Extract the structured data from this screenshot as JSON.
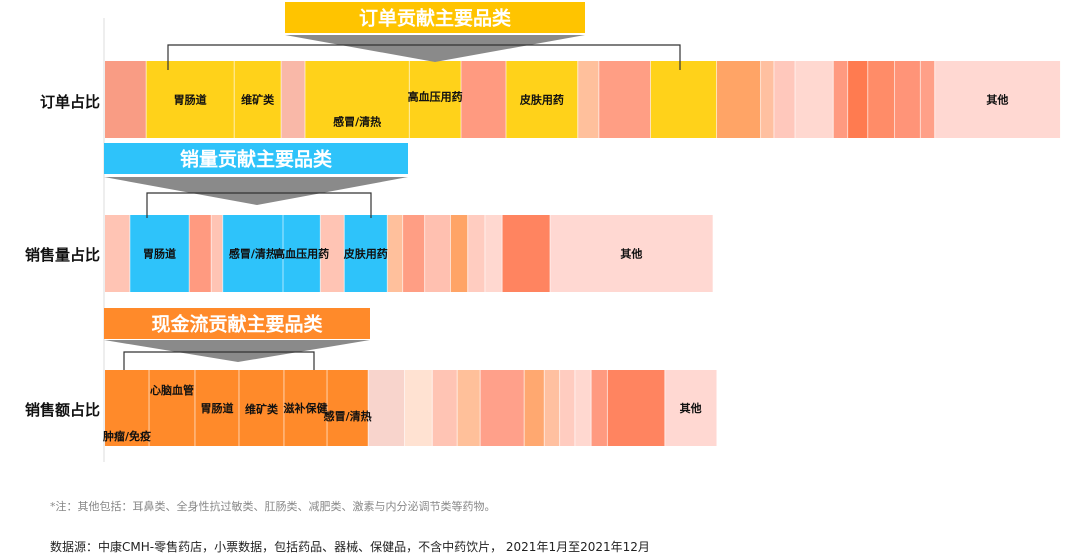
{
  "chart_data": {
    "type": "bar",
    "subtype": "stacked-horizontal-share",
    "rows": [
      {
        "label": "订单占比",
        "callout": {
          "title": "订单贡献主要品类",
          "color": "#FFC400"
        },
        "segments": [
          {
            "label": "",
            "share": 4.3,
            "color": "#F99C84"
          },
          {
            "label": "胃肠道",
            "share": 9.2,
            "color": "#FFD21A"
          },
          {
            "label": "维矿类",
            "share": 4.9,
            "color": "#FFD21A"
          },
          {
            "label": "",
            "share": 2.5,
            "color": "#F9B8A8"
          },
          {
            "label": "感冒/清热",
            "share": 10.9,
            "color": "#FFD21A"
          },
          {
            "label": "高血压用药",
            "share": 5.4,
            "color": "#FFD21A"
          },
          {
            "label": "",
            "share": 4.7,
            "color": "#FF9A80"
          },
          {
            "label": "皮肤用药",
            "share": 7.5,
            "color": "#FFD21A"
          },
          {
            "label": "",
            "share": 2.2,
            "color": "#FFC09C"
          },
          {
            "label": "",
            "share": 5.4,
            "color": "#FF9E84"
          },
          {
            "label": "",
            "share": 6.9,
            "color": "#FFD21A"
          },
          {
            "label": "",
            "share": 4.6,
            "color": "#FFA466"
          },
          {
            "label": "",
            "share": 1.4,
            "color": "#FFC0A0"
          },
          {
            "label": "",
            "share": 2.2,
            "color": "#FFC8BC"
          },
          {
            "label": "",
            "share": 4.0,
            "color": "#FFD8D0"
          },
          {
            "label": "",
            "share": 1.5,
            "color": "#FF9A80"
          },
          {
            "label": "",
            "share": 2.1,
            "color": "#FF7B50"
          },
          {
            "label": "",
            "share": 2.8,
            "color": "#FF8C68"
          },
          {
            "label": "",
            "share": 2.7,
            "color": "#FF9478"
          },
          {
            "label": "",
            "share": 1.5,
            "color": "#FFA088"
          },
          {
            "label": "其他",
            "share": 13.1,
            "color": "#FFD8D2"
          }
        ]
      },
      {
        "label": "销售量占比",
        "callout": {
          "title": "销量贡献主要品类",
          "color": "#2EC3FA"
        },
        "segments": [
          {
            "label": "",
            "share": 2.6,
            "color": "#FFC4B4"
          },
          {
            "label": "胃肠道",
            "share": 6.2,
            "color": "#2EC3FA"
          },
          {
            "label": "",
            "share": 2.3,
            "color": "#FF9A80"
          },
          {
            "label": "",
            "share": 1.2,
            "color": "#FFC4B4"
          },
          {
            "label": "感冒/清热",
            "share": 6.3,
            "color": "#2EC3FA"
          },
          {
            "label": "高血压用药",
            "share": 3.9,
            "color": "#2EC3FA"
          },
          {
            "label": "",
            "share": 2.5,
            "color": "#FFC4B4"
          },
          {
            "label": "皮肤用药",
            "share": 4.5,
            "color": "#2EC3FA"
          },
          {
            "label": "",
            "share": 1.6,
            "color": "#FFC09C"
          },
          {
            "label": "",
            "share": 2.3,
            "color": "#FF9E84"
          },
          {
            "label": "",
            "share": 2.7,
            "color": "#FFC0B0"
          },
          {
            "label": "",
            "share": 1.8,
            "color": "#FFA466"
          },
          {
            "label": "",
            "share": 1.8,
            "color": "#FFCCC0"
          },
          {
            "label": "",
            "share": 1.8,
            "color": "#FFD8D0"
          },
          {
            "label": "",
            "share": 5.0,
            "color": "#FF8460"
          },
          {
            "label": "其他",
            "share": 17.0,
            "color": "#FFD8D2"
          }
        ]
      },
      {
        "label": "销售额占比",
        "callout": {
          "title": "现金流贡献主要品类",
          "color": "#FF8A2A"
        },
        "segments": [
          {
            "label": "肿瘤/免疫",
            "share": 4.6,
            "color": "#FF8A2A"
          },
          {
            "label": "心脑血管",
            "share": 4.8,
            "color": "#FF8A2A"
          },
          {
            "label": "胃肠道",
            "share": 4.6,
            "color": "#FF8A2A"
          },
          {
            "label": "维矿类",
            "share": 4.7,
            "color": "#FF8A2A"
          },
          {
            "label": "滋补保健",
            "share": 4.5,
            "color": "#FF8A2A"
          },
          {
            "label": "感冒/清热",
            "share": 4.3,
            "color": "#FF8A2A"
          },
          {
            "label": "",
            "share": 3.8,
            "color": "#F8D4CC"
          },
          {
            "label": "",
            "share": 2.9,
            "color": "#FFE2D2"
          },
          {
            "label": "",
            "share": 2.6,
            "color": "#FFC4B4"
          },
          {
            "label": "",
            "share": 2.4,
            "color": "#FFC09A"
          },
          {
            "label": "",
            "share": 4.6,
            "color": "#FFA08A"
          },
          {
            "label": "",
            "share": 2.1,
            "color": "#FFA870"
          },
          {
            "label": "",
            "share": 1.6,
            "color": "#FFC0A0"
          },
          {
            "label": "",
            "share": 1.6,
            "color": "#FFCCC0"
          },
          {
            "label": "",
            "share": 1.7,
            "color": "#FFD8D0"
          },
          {
            "label": "",
            "share": 1.7,
            "color": "#FF9A80"
          },
          {
            "label": "",
            "share": 6.0,
            "color": "#FF8460"
          },
          {
            "label": "其他",
            "share": 5.4,
            "color": "#FFD8D2"
          }
        ]
      }
    ]
  },
  "footer": {
    "note": "*注：其他包括：耳鼻类、全身性抗过敏类、肛肠类、减肥类、激素与内分泌调节类等药物。",
    "source": "数据源：中康CMH-零售药店，小票数据，包括药品、器械、保健品，不含中药饮片， 2021年1月至2021年12月"
  }
}
